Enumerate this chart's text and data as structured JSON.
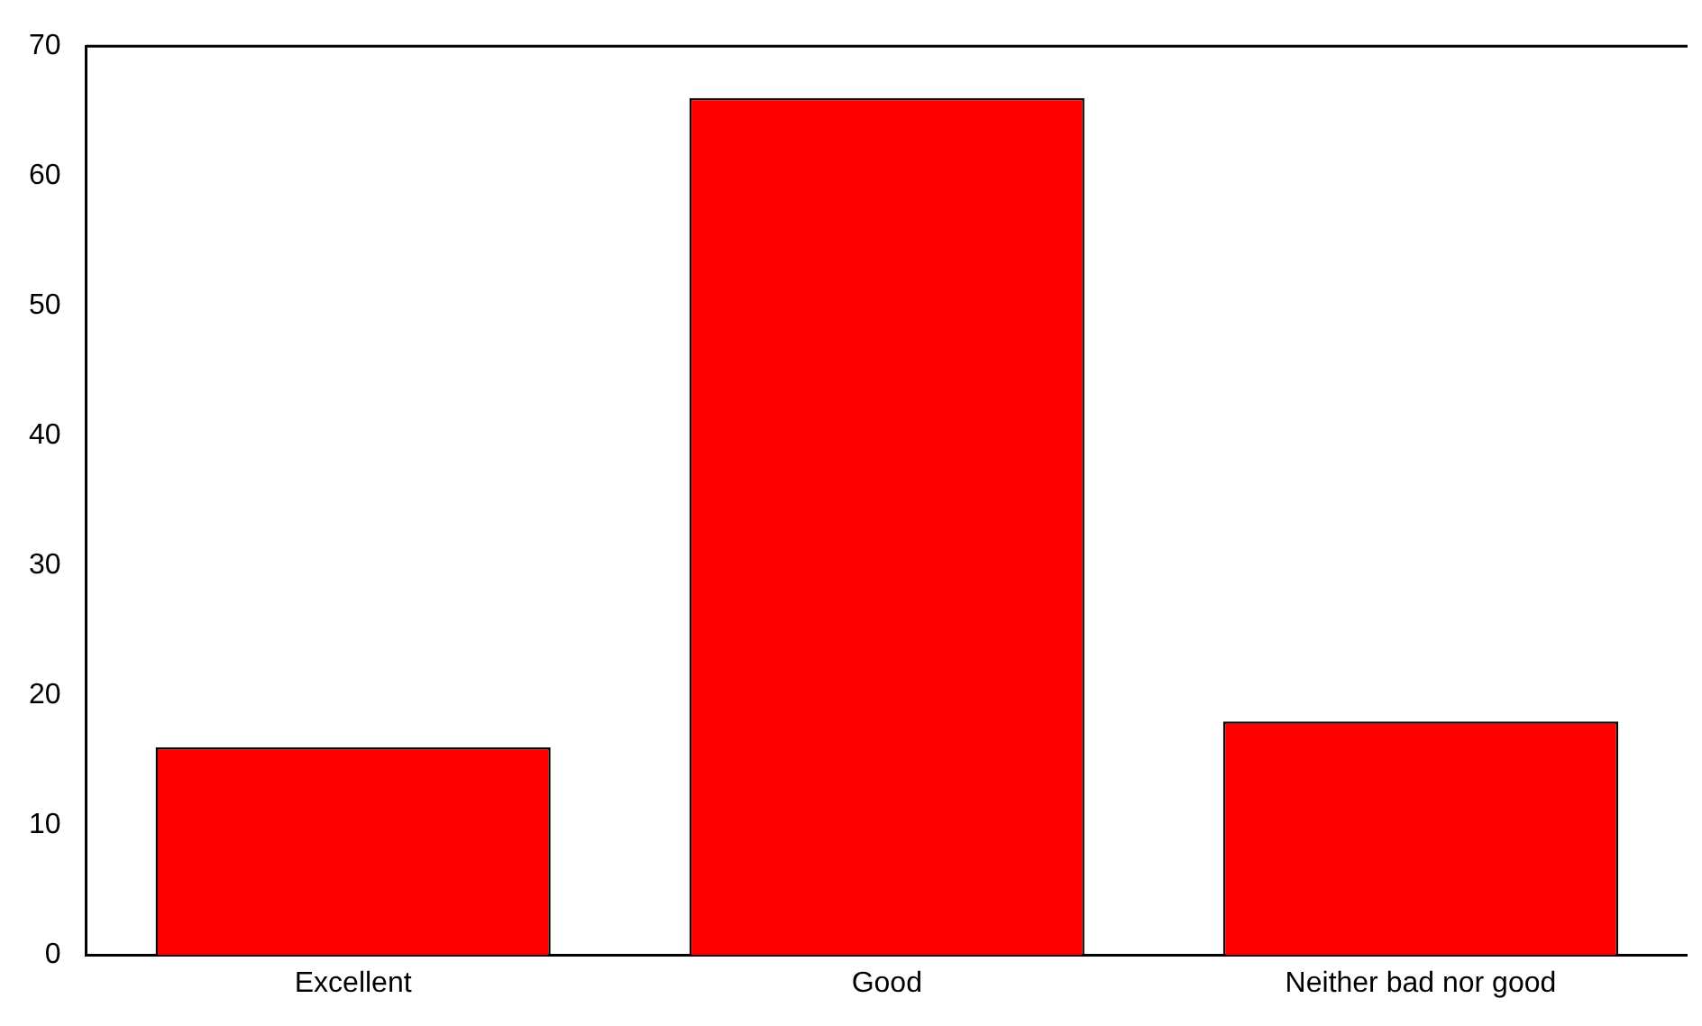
{
  "chart_data": {
    "type": "bar",
    "categories": [
      "Excellent",
      "Good",
      "Neither bad nor good"
    ],
    "values": [
      16,
      66,
      18
    ],
    "color": "#ff0000",
    "ylim": [
      0,
      70
    ],
    "yticks": [
      0,
      10,
      20,
      30,
      40,
      50,
      60,
      70
    ],
    "grid": false,
    "legend": false
  }
}
